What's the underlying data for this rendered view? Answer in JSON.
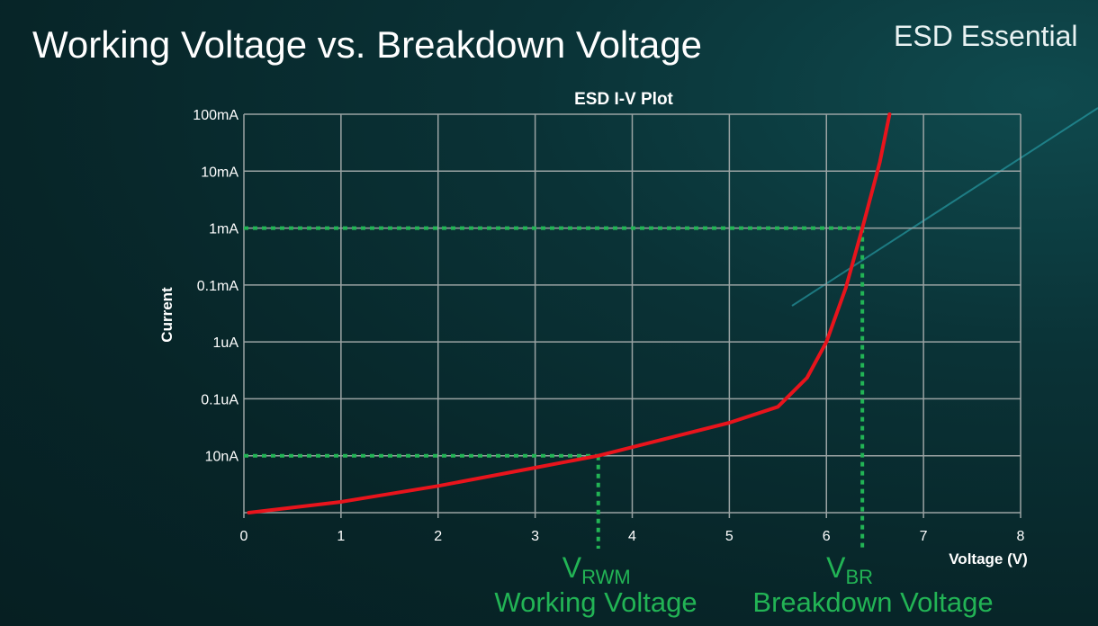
{
  "slide": {
    "title": "Working Voltage vs. Breakdown Voltage",
    "brand": "ESD Essential"
  },
  "chart_data": {
    "type": "line",
    "title": "ESD I-V Plot",
    "xlabel": "Voltage (V)",
    "ylabel": "Current",
    "xlim": [
      0,
      8
    ],
    "x_ticks": [
      "0",
      "1",
      "2",
      "3",
      "4",
      "5",
      "6",
      "7",
      "8"
    ],
    "y_scale": "log",
    "y_tick_labels": [
      "",
      "10nA",
      "0.1uA",
      "1uA",
      "0.1mA",
      "1mA",
      "10mA",
      "100mA"
    ],
    "grid": true,
    "series": [
      {
        "color": "#e8141c",
        "x": [
          0.05,
          1,
          2,
          3,
          3.65,
          4,
          5,
          5.5,
          5.8,
          6.0,
          6.2,
          6.37,
          6.55,
          6.65
        ],
        "y_level": [
          0,
          0.19,
          0.47,
          0.79,
          1.0,
          1.15,
          1.58,
          1.86,
          2.37,
          3.0,
          3.95,
          5.0,
          6.16,
          7.0
        ]
      }
    ],
    "annotations": [
      {
        "voltage": 3.65,
        "current": "10nA",
        "label_main": "V",
        "label_sub": "RWM",
        "caption": "Working Voltage"
      },
      {
        "voltage": 6.37,
        "current": "1mA",
        "label_main": "V",
        "label_sub": "BR",
        "caption": "Breakdown Voltage"
      }
    ],
    "annotation_color": "#22b455"
  }
}
